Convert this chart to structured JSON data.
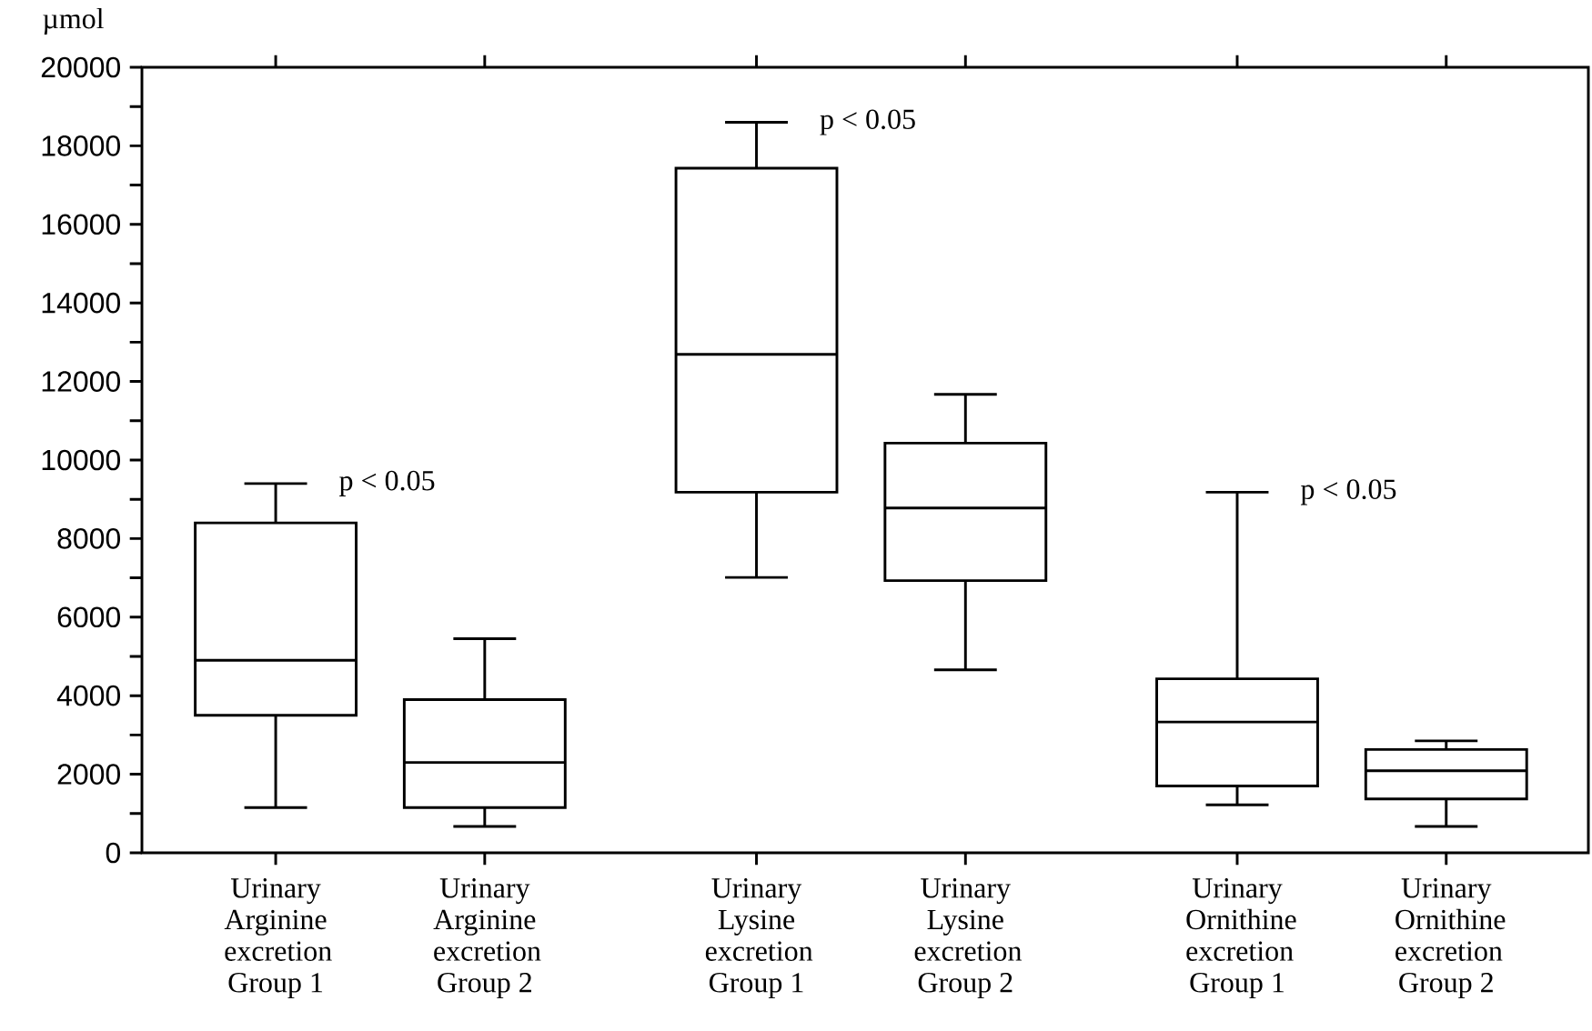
{
  "chart_data": {
    "type": "box",
    "ylabel": "µmol",
    "categories": [
      "Urinary Arginine excretion Group 1",
      "Urinary Arginine excretion Group 2",
      "Urinary Lysine excretion Group 1",
      "Urinary Lysine excretion Group 2",
      "Urinary Ornithine excretion Group 1",
      "Urinary Ornithine excretion Group 2"
    ],
    "boxes": [
      {
        "low": 1150,
        "q1": 3500,
        "median": 4900,
        "q3": 8400,
        "high": 9400
      },
      {
        "low": 670,
        "q1": 1150,
        "median": 2300,
        "q3": 3900,
        "high": 5450
      },
      {
        "low": 7010,
        "q1": 9180,
        "median": 12690,
        "q3": 17430,
        "high": 18600
      },
      {
        "low": 4660,
        "q1": 6930,
        "median": 8780,
        "q3": 10430,
        "high": 11670
      },
      {
        "low": 1220,
        "q1": 1700,
        "median": 3330,
        "q3": 4430,
        "high": 9180
      },
      {
        "low": 670,
        "q1": 1370,
        "median": 2090,
        "q3": 2630,
        "high": 2850
      }
    ],
    "color": "#000000",
    "ylim": [
      0,
      20000
    ],
    "yticks": [
      0,
      {
        "value": 1000,
        "label": null
      },
      2000,
      {
        "value": 3000,
        "label": null
      },
      4000,
      {
        "value": 5000,
        "label": null
      },
      6000,
      {
        "value": 7000,
        "label": null
      },
      8000,
      {
        "value": 9000,
        "label": null
      },
      10000,
      {
        "value": 11000,
        "label": null
      },
      12000,
      {
        "value": 13000,
        "label": null
      },
      14000,
      {
        "value": 15000,
        "label": null
      },
      16000,
      {
        "value": 17000,
        "label": null
      },
      18000,
      {
        "value": 19000,
        "label": null
      },
      20000
    ],
    "grid": false,
    "annotations": [
      {
        "text": "p < 0.05",
        "x": "Urinary Arginine excretion Group 1",
        "y": 9400
      },
      {
        "text": "p < 0.05",
        "x": "Urinary Lysine excretion Group 1",
        "y": 18600
      },
      {
        "text": "p < 0.05",
        "x": "Urinary Ornithine excretion Group 1",
        "y": 9180
      }
    ]
  }
}
